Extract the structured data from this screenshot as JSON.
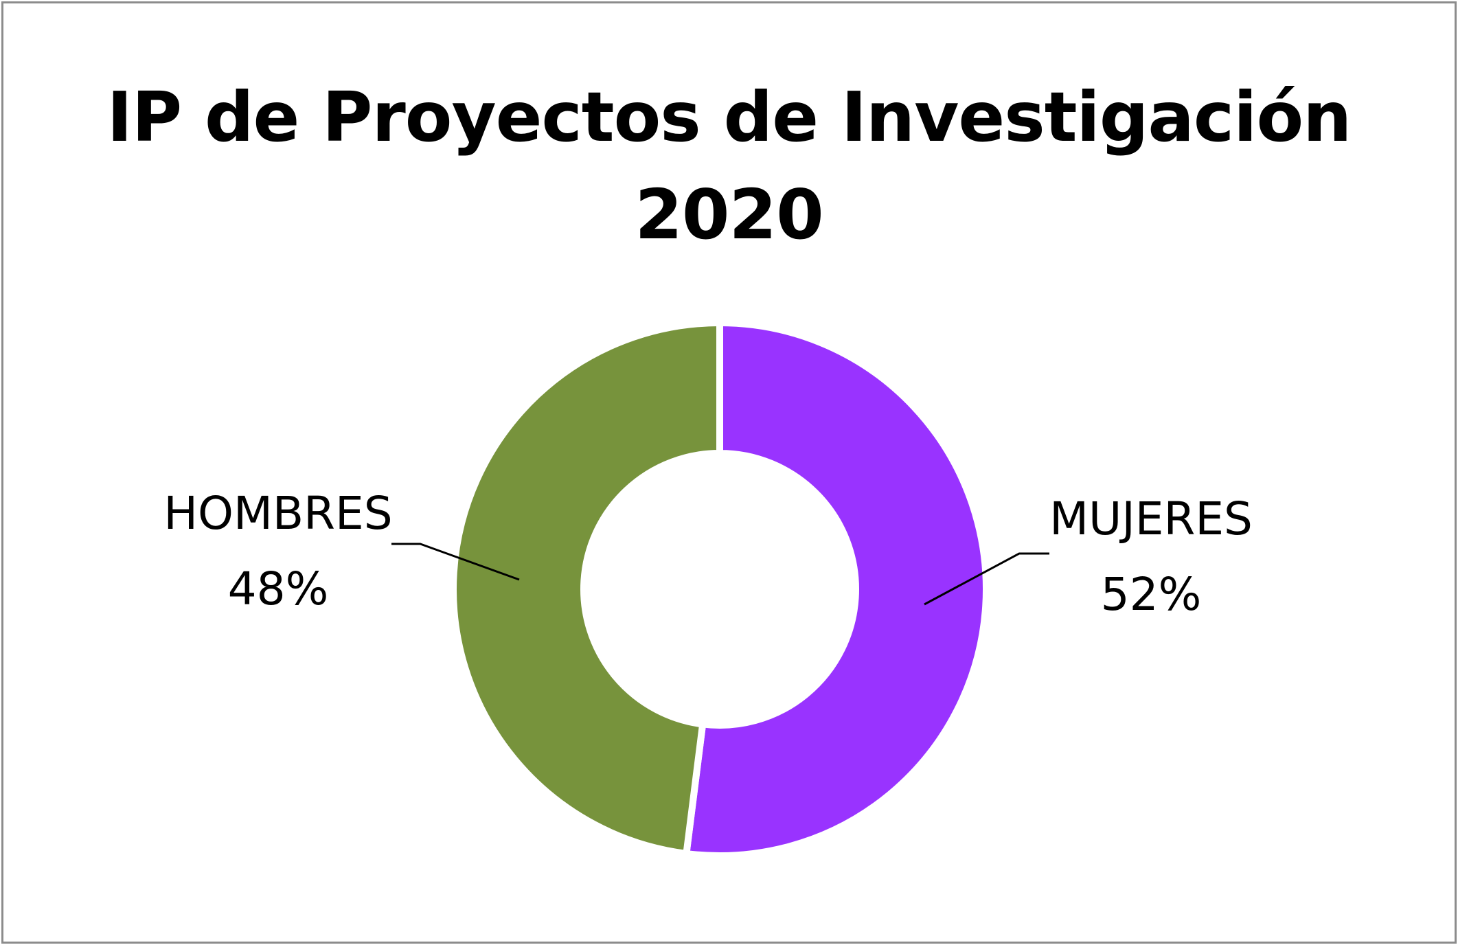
{
  "chart_data": {
    "type": "pie",
    "style": "donut",
    "title": [
      "IP de Proyectos de Investigación",
      "2020"
    ],
    "slices": [
      {
        "label": "MUJERES",
        "value": 52,
        "value_label": "52%",
        "color": "#9933ff"
      },
      {
        "label": "HOMBRES",
        "value": 48,
        "value_label": "48%",
        "color": "#77933c"
      }
    ],
    "legend": "none",
    "data_labels": "outside with leader lines"
  }
}
